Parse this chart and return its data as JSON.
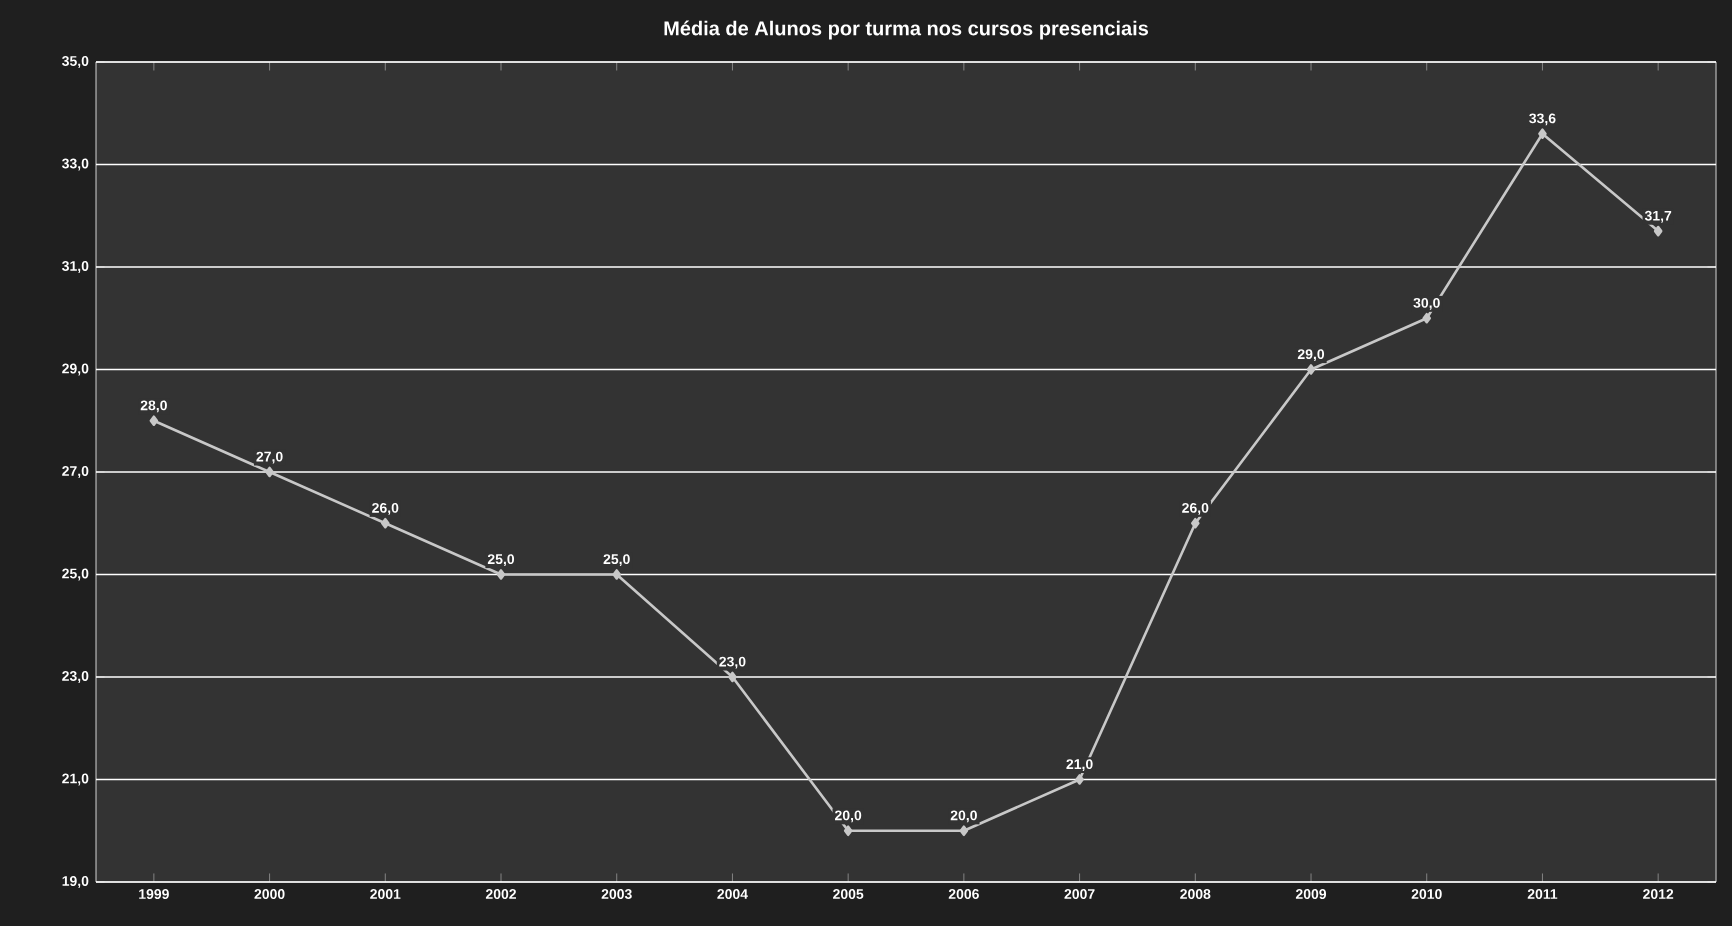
{
  "chart_data": {
    "type": "line",
    "title": "Média de Alunos por turma nos cursos presenciais",
    "categories": [
      "1999",
      "2000",
      "2001",
      "2002",
      "2003",
      "2004",
      "2005",
      "2006",
      "2007",
      "2008",
      "2009",
      "2010",
      "2011",
      "2012"
    ],
    "values": [
      28.0,
      27.0,
      26.0,
      25.0,
      25.0,
      23.0,
      20.0,
      20.0,
      21.0,
      26.0,
      29.0,
      30.0,
      33.6,
      31.7
    ],
    "value_labels": [
      "28,0",
      "27,0",
      "26,0",
      "25,0",
      "25,0",
      "23,0",
      "20,0",
      "20,0",
      "21,0",
      "26,0",
      "29,0",
      "30,0",
      "33,6",
      "31,7"
    ],
    "color": "#c8c8c8",
    "marker": "diamond",
    "grid": "y",
    "ylim": [
      19,
      35
    ],
    "yticks": [
      {
        "value": 19,
        "label": "19,0"
      },
      {
        "value": 21,
        "label": "21,0"
      },
      {
        "value": 23,
        "label": "23,0"
      },
      {
        "value": 25,
        "label": "25,0"
      },
      {
        "value": 27,
        "label": "27,0"
      },
      {
        "value": 29,
        "label": "29,0"
      },
      {
        "value": 31,
        "label": "31,0"
      },
      {
        "value": 33,
        "label": "33,0"
      },
      {
        "value": 35,
        "label": "35,0"
      }
    ]
  }
}
